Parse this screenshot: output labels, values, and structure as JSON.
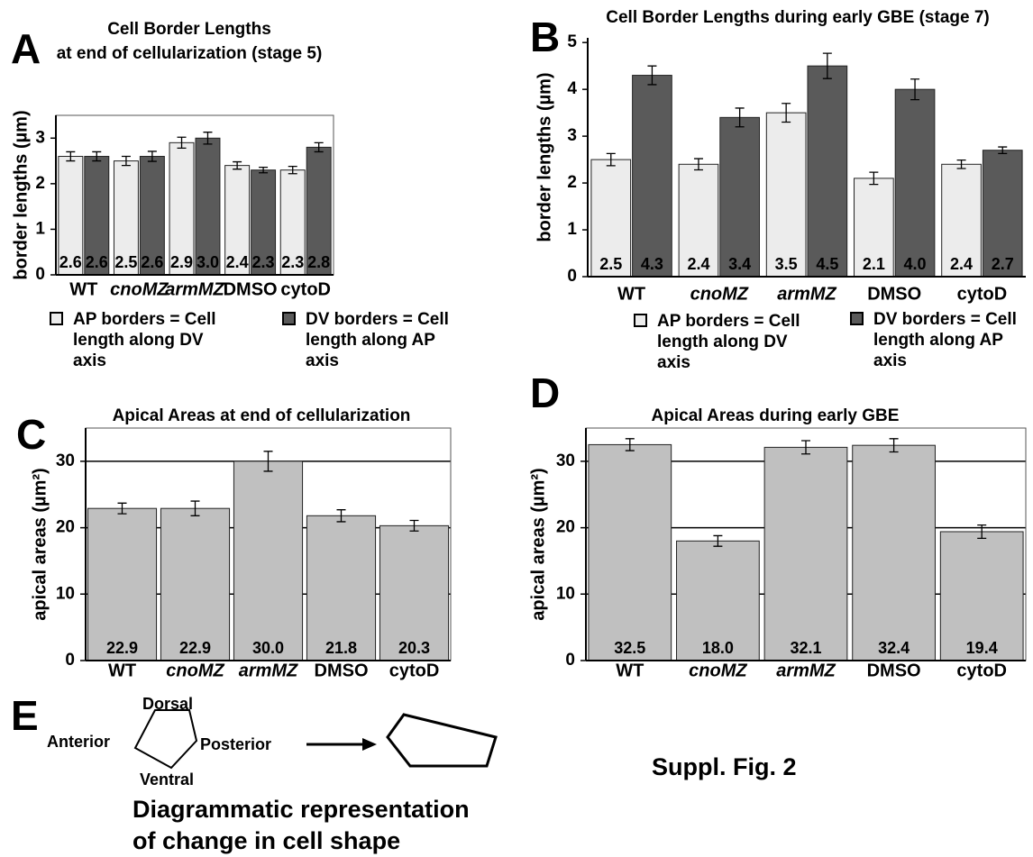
{
  "chart_data": [
    {
      "type": "bar",
      "panel": "A",
      "title": [
        "Cell Border Lengths",
        "at end of cellularization (stage 5)"
      ],
      "ylabel": "border lengths (µm)",
      "categories": [
        "WT",
        "cnoMZ",
        "armMZ",
        "DMSO",
        "cytoD"
      ],
      "series": [
        {
          "name": "AP borders = Cell length along DV axis",
          "color": "#ececec",
          "values": [
            2.6,
            2.5,
            2.9,
            2.4,
            2.3
          ],
          "value_labels": [
            "2.6",
            "2.5",
            "2.9",
            "2.4",
            "2.3"
          ],
          "errors": [
            0.1,
            0.1,
            0.12,
            0.08,
            0.08
          ]
        },
        {
          "name": "DV borders = Cell length along AP axis",
          "color": "#5a5a5a",
          "values": [
            2.6,
            2.6,
            3.0,
            2.3,
            2.8
          ],
          "value_labels": [
            "2.6",
            "2.6",
            "3.0",
            "2.3",
            "2.8"
          ],
          "errors": [
            0.1,
            0.11,
            0.13,
            0.06,
            0.1
          ]
        }
      ],
      "ylim": [
        0,
        3.5
      ],
      "yticks": [
        0,
        1,
        2,
        3
      ]
    },
    {
      "type": "bar",
      "panel": "B",
      "title": [
        "Cell Border Lengths during early GBE (stage 7)"
      ],
      "ylabel": "border lengths (µm)",
      "categories": [
        "WT",
        "cnoMZ",
        "armMZ",
        "DMSO",
        "cytoD"
      ],
      "series": [
        {
          "name": "AP borders = Cell length along DV axis",
          "color": "#ececec",
          "values": [
            2.5,
            2.4,
            3.5,
            2.1,
            2.4
          ],
          "value_labels": [
            "2.5",
            "2.4",
            "3.5",
            "2.1",
            "2.4"
          ],
          "errors": [
            0.13,
            0.12,
            0.2,
            0.13,
            0.09
          ]
        },
        {
          "name": "DV borders = Cell length along AP axis",
          "color": "#5a5a5a",
          "values": [
            4.3,
            3.4,
            4.5,
            4.0,
            2.7
          ],
          "value_labels": [
            "4.3",
            "3.4",
            "4.5",
            "4.0",
            "2.7"
          ],
          "errors": [
            0.2,
            0.2,
            0.27,
            0.22,
            0.07
          ]
        }
      ],
      "ylim": [
        0,
        5.1
      ],
      "yticks": [
        0,
        1,
        2,
        3,
        4,
        5
      ]
    },
    {
      "type": "bar",
      "panel": "C",
      "title": [
        "Apical Areas at end of cellularization"
      ],
      "ylabel": "apical areas (µm²)",
      "categories": [
        "WT",
        "cnoMZ",
        "armMZ",
        "DMSO",
        "cytoD"
      ],
      "series": [
        {
          "color": "#c0c0c0",
          "values": [
            22.9,
            22.9,
            30.0,
            21.8,
            20.3
          ],
          "value_labels": [
            "22.9",
            "22.9",
            "30.0",
            "21.8",
            "20.3"
          ],
          "errors": [
            0.8,
            1.1,
            1.5,
            0.9,
            0.8
          ]
        }
      ],
      "ylim": [
        0,
        35
      ],
      "yticks": [
        0,
        10,
        20,
        30
      ]
    },
    {
      "type": "bar",
      "panel": "D",
      "title": [
        "Apical Areas during early GBE"
      ],
      "ylabel": "apical areas (µm²)",
      "categories": [
        "WT",
        "cnoMZ",
        "armMZ",
        "DMSO",
        "cytoD"
      ],
      "series": [
        {
          "color": "#c0c0c0",
          "values": [
            32.5,
            18.0,
            32.1,
            32.4,
            19.4
          ],
          "value_labels": [
            "32.5",
            "18.0",
            "32.1",
            "32.4",
            "19.4"
          ],
          "errors": [
            0.9,
            0.8,
            1.0,
            1.0,
            1.0
          ]
        }
      ],
      "ylim": [
        0,
        35
      ],
      "yticks": [
        0,
        10,
        20,
        30
      ]
    }
  ],
  "diagram": {
    "panel": "E",
    "labels": [
      "Dorsal",
      "Anterior",
      "Posterior",
      "Ventral"
    ],
    "caption": [
      "Diagrammatic representation",
      "of change in cell shape"
    ]
  },
  "figure_label": "Suppl. Fig. 2"
}
